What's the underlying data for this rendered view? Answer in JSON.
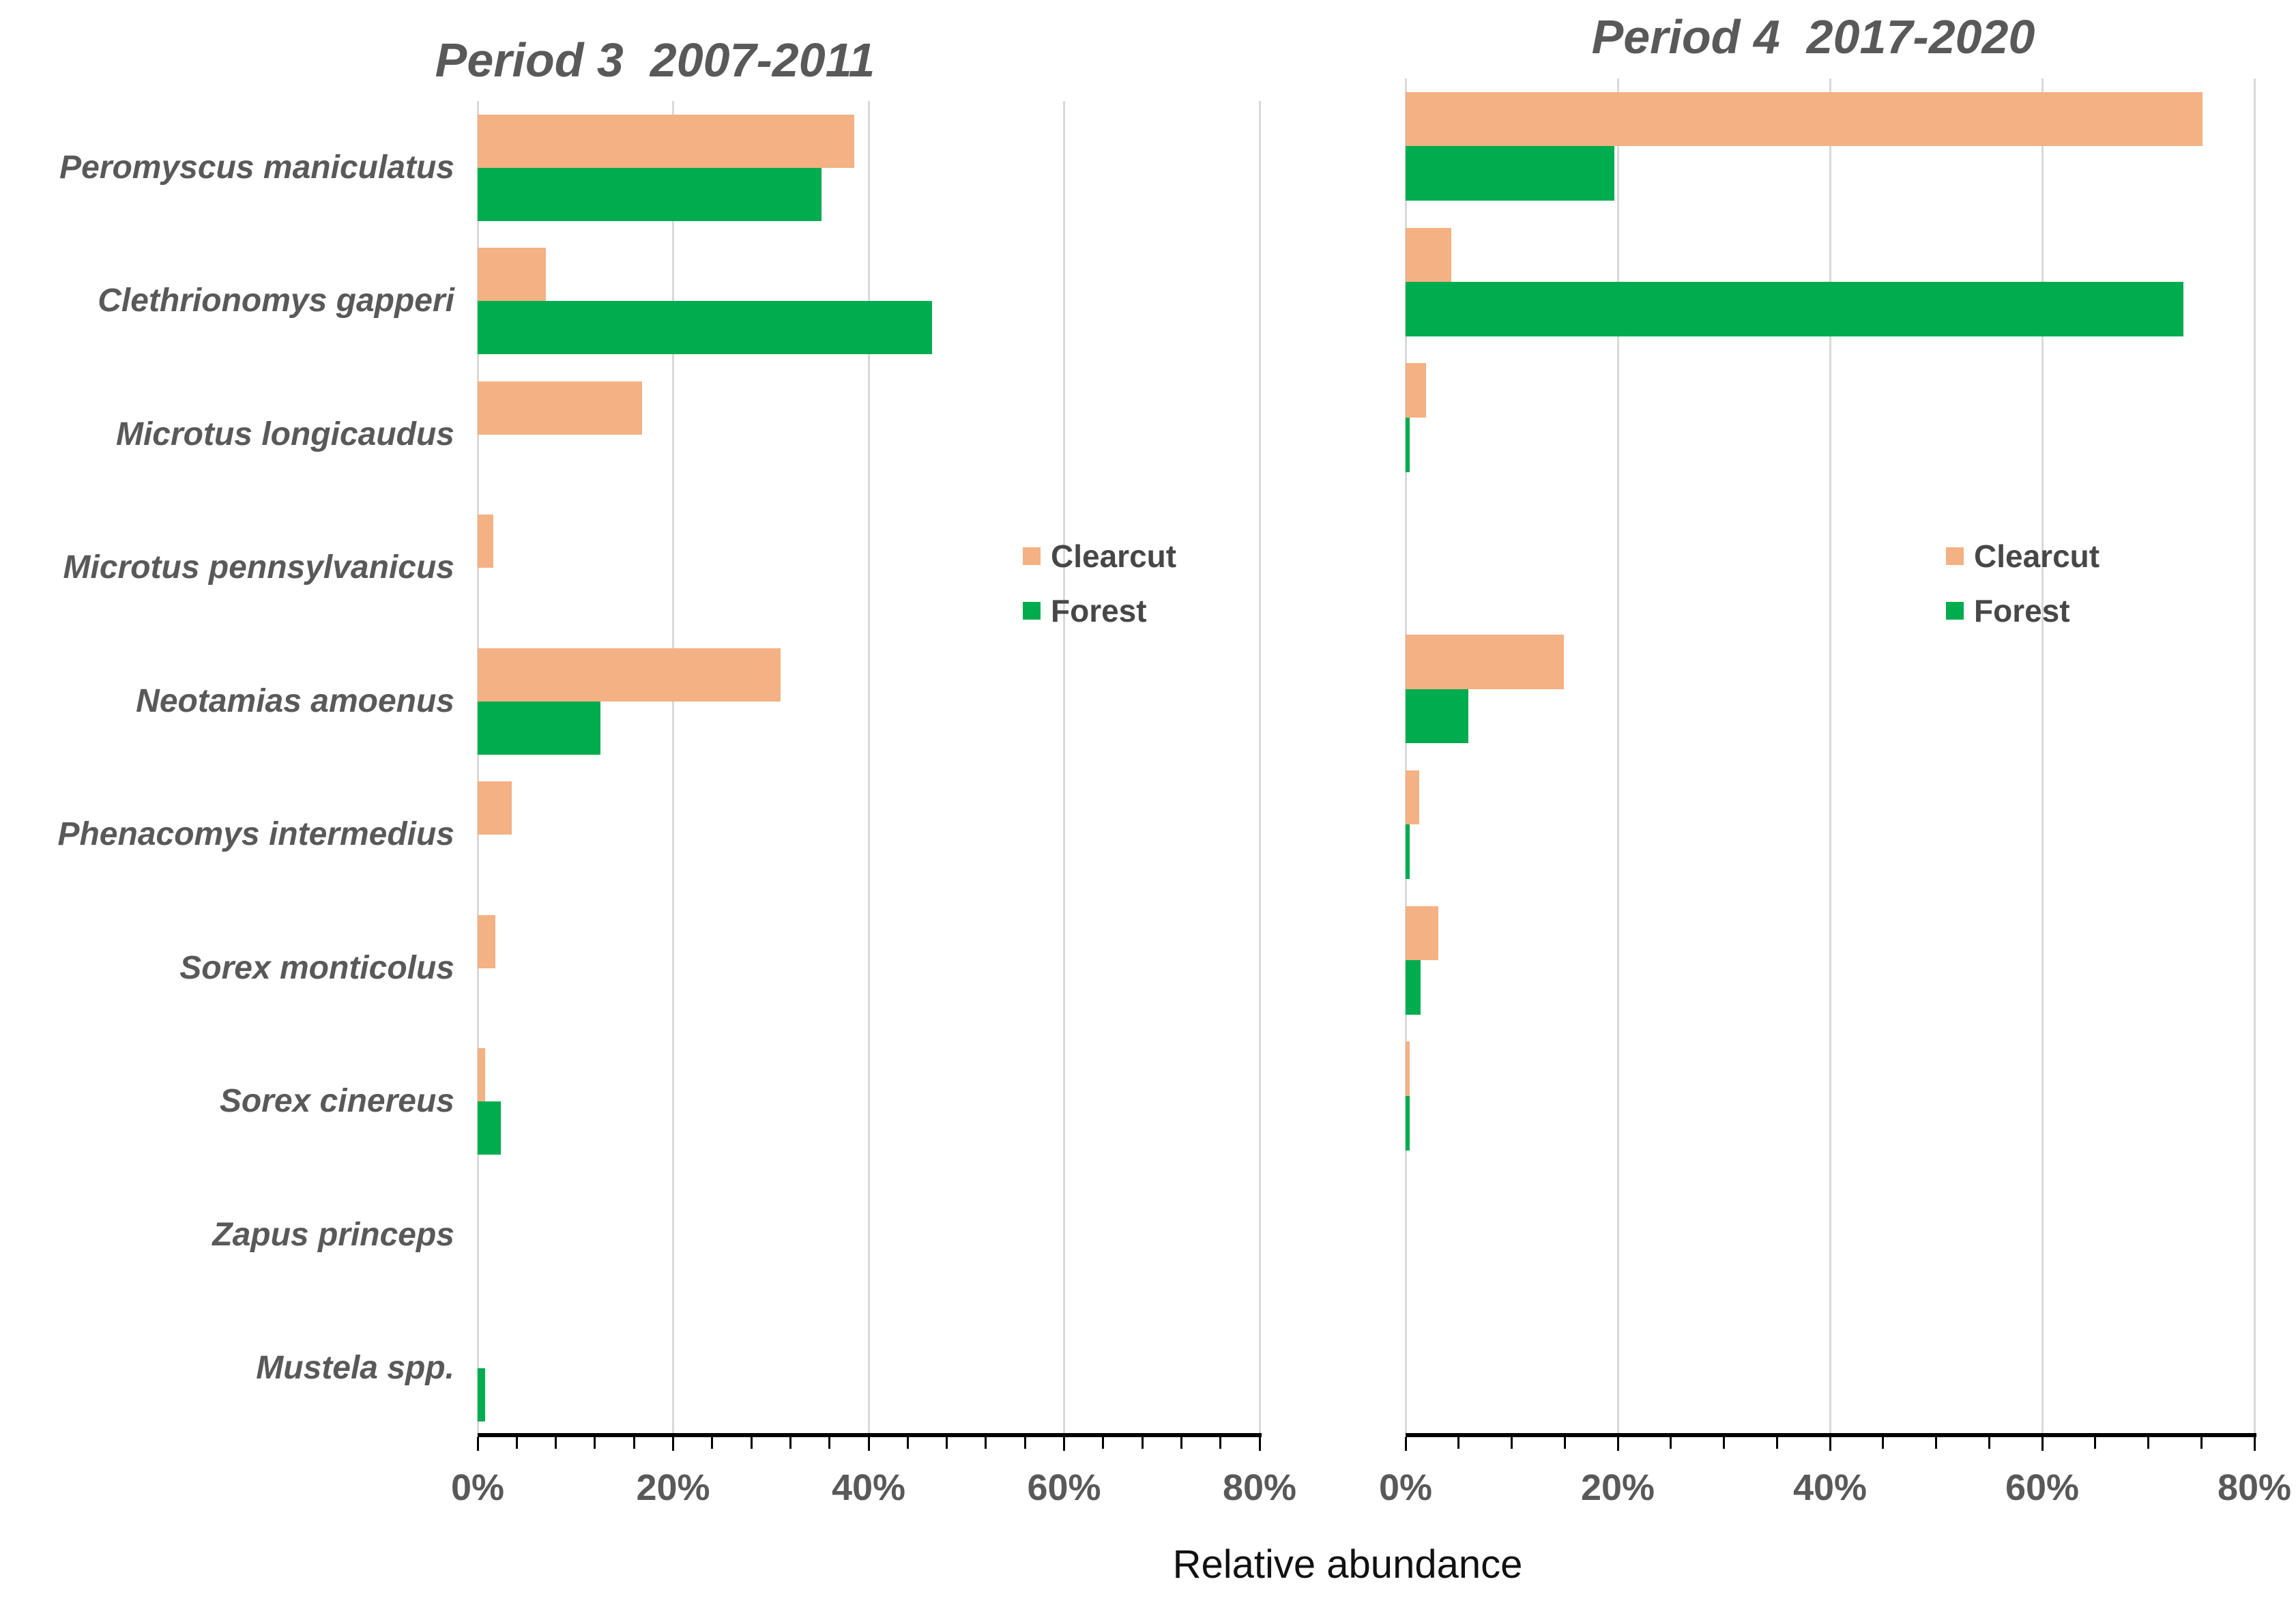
{
  "figure": {
    "xlabel": "Relative abundance"
  },
  "colors": {
    "clearcut": "#F4B183",
    "forest": "#00AC4E",
    "title_text": "#595959",
    "category_text": "#595959",
    "tick_text": "#595959",
    "legend_text": "#474747",
    "axis_line": "#000000",
    "gridline": "#D9D9D9",
    "xlabel_text": "#111111"
  },
  "legend": {
    "items": [
      {
        "label": "Clearcut",
        "color_key": "clearcut"
      },
      {
        "label": "Forest",
        "color_key": "forest"
      }
    ]
  },
  "chart_data": [
    {
      "type": "bar",
      "orientation": "horizontal",
      "id": "period-3",
      "title": "Period 3  2007-2011",
      "categories": [
        "Peromyscus maniculatus",
        "Clethrionomys gapperi",
        "Microtus longicaudus",
        "Microtus pennsylvanicus",
        "Neotamias amoenus",
        "Phenacomys intermedius",
        "Sorex monticolus",
        "Sorex cinereus",
        "Zapus princeps",
        "Mustela spp."
      ],
      "show_category_labels": true,
      "series": [
        {
          "name": "Clearcut",
          "values": [
            38.5,
            7.0,
            16.8,
            1.6,
            31.0,
            3.5,
            1.8,
            0.8,
            0,
            0
          ]
        },
        {
          "name": "Forest",
          "values": [
            35.2,
            46.5,
            0,
            0,
            12.6,
            0,
            0,
            2.4,
            0,
            0.8
          ]
        }
      ],
      "xlim": [
        0,
        80
      ],
      "x_major_tick_values": [
        0,
        20,
        40,
        60,
        80
      ],
      "x_major_ticks": [
        "0%",
        "20%",
        "40%",
        "60%",
        "80%"
      ],
      "x_minor_unit": 4,
      "grid": true,
      "legend_position": "middle-right"
    },
    {
      "type": "bar",
      "orientation": "horizontal",
      "id": "period-4",
      "title": "Period 4  2017-2020",
      "categories": [
        "Peromyscus maniculatus",
        "Clethrionomys gapperi",
        "Microtus longicaudus",
        "Microtus pennsylvanicus",
        "Neotamias amoenus",
        "Phenacomys intermedius",
        "Sorex monticolus",
        "Sorex cinereus",
        "Zapus princeps",
        "Mustela spp."
      ],
      "show_category_labels": false,
      "series": [
        {
          "name": "Clearcut",
          "values": [
            75.1,
            4.3,
            1.9,
            0,
            14.9,
            1.3,
            3.1,
            0.4,
            0,
            0
          ]
        },
        {
          "name": "Forest",
          "values": [
            19.7,
            73.3,
            0.4,
            0,
            5.9,
            0.4,
            1.4,
            0.4,
            0,
            0
          ]
        }
      ],
      "xlim": [
        0,
        80
      ],
      "x_major_tick_values": [
        0,
        20,
        40,
        60,
        80
      ],
      "x_major_ticks": [
        "0%",
        "20%",
        "40%",
        "60%",
        "80%"
      ],
      "x_minor_unit": 5,
      "grid": true,
      "legend_position": "middle-right"
    }
  ]
}
